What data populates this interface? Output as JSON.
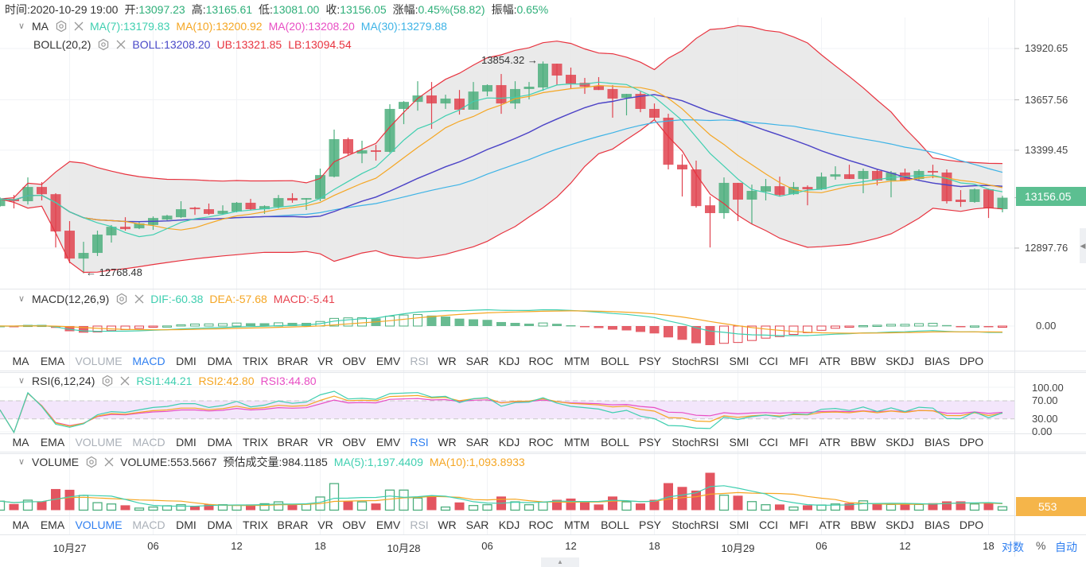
{
  "header": {
    "time_label": "时间:",
    "time": "2020-10-29 19:00",
    "open_label": "开:",
    "open": "13097.23",
    "high_label": "高:",
    "high": "13165.61",
    "low_label": "低:",
    "low": "13081.00",
    "close_label": "收:",
    "close": "13156.05",
    "change_label": "涨幅:",
    "change": "0.45%(58.82)",
    "amplitude_label": "振幅:",
    "amplitude": "0.65%"
  },
  "legends": {
    "ma": {
      "name": "MA",
      "items": [
        {
          "label": "MA(7):13179.83",
          "color": "#3fcfb0"
        },
        {
          "label": "MA(10):13200.92",
          "color": "#f5a623"
        },
        {
          "label": "MA(20):13208.20",
          "color": "#e84ec4"
        },
        {
          "label": "MA(30):13279.88",
          "color": "#3db3e6"
        }
      ]
    },
    "boll": {
      "name": "BOLL(20,2)",
      "items": [
        {
          "label": "BOLL:13208.20",
          "color": "#4848c8"
        },
        {
          "label": "UB:13321.85",
          "color": "#e8333f"
        },
        {
          "label": "LB:13094.54",
          "color": "#e8333f"
        }
      ]
    },
    "macd": {
      "name": "MACD(12,26,9)",
      "items": [
        {
          "label": "DIF:-60.38",
          "color": "#3fcfb0"
        },
        {
          "label": "DEA:-57.68",
          "color": "#f5a623"
        },
        {
          "label": "MACD:-5.41",
          "color": "#e8434f"
        }
      ]
    },
    "rsi": {
      "name": "RSI(6,12,24)",
      "items": [
        {
          "label": "RSI1:44.21",
          "color": "#3fcfb0"
        },
        {
          "label": "RSI2:42.80",
          "color": "#f5a623"
        },
        {
          "label": "RSI3:44.80",
          "color": "#e84ec4"
        }
      ]
    },
    "volume": {
      "name": "VOLUME",
      "items": [
        {
          "label": "VOLUME:553.5667",
          "color": "#333333"
        },
        {
          "label": "预估成交量:984.1185",
          "color": "#333333"
        },
        {
          "label": "MA(5):1,197.4409",
          "color": "#3fcfb0"
        },
        {
          "label": "MA(10):1,093.8933",
          "color": "#f5a623"
        }
      ]
    }
  },
  "indicator_tabs": [
    "MA",
    "EMA",
    "VOLUME",
    "MACD",
    "DMI",
    "DMA",
    "TRIX",
    "BRAR",
    "VR",
    "OBV",
    "EMV",
    "RSI",
    "WR",
    "SAR",
    "KDJ",
    "ROC",
    "MTM",
    "BOLL",
    "PSY",
    "StochRSI",
    "SMI",
    "CCI",
    "MFI",
    "ATR",
    "BBW",
    "SKDJ",
    "BIAS",
    "DPO"
  ],
  "tab_rows": [
    {
      "active": "MACD",
      "disabled": [
        "VOLUME",
        "RSI"
      ]
    },
    {
      "active": "RSI",
      "disabled": [
        "VOLUME",
        "MACD"
      ]
    },
    {
      "active": "VOLUME",
      "disabled": [
        "MACD",
        "RSI"
      ]
    }
  ],
  "price_axis": [
    "13920.65",
    "13657.56",
    "13399.45",
    "12897.76"
  ],
  "last_price": "13156.05",
  "macd_axis": "0.00",
  "rsi_axis": [
    "100.00",
    "70.00",
    "30.00",
    "0.00"
  ],
  "volume_badge": "553",
  "time_axis": [
    {
      "label": "10月27",
      "index": 5
    },
    {
      "label": "06",
      "index": 11
    },
    {
      "label": "12",
      "index": 17
    },
    {
      "label": "18",
      "index": 23
    },
    {
      "label": "10月28",
      "index": 29
    },
    {
      "label": "06",
      "index": 35
    },
    {
      "label": "12",
      "index": 41
    },
    {
      "label": "18",
      "index": 47
    },
    {
      "label": "10月29",
      "index": 53
    },
    {
      "label": "06",
      "index": 59
    },
    {
      "label": "12",
      "index": 65
    },
    {
      "label": "18",
      "index": 71
    }
  ],
  "bottom_controls": {
    "log": "对数",
    "percent": "%",
    "auto": "自动"
  },
  "annotations": {
    "high": "13854.32 →",
    "low": "← 12768.48"
  },
  "colors": {
    "up": "#4daf7e",
    "down": "#e0434f",
    "band": "#e8e8e8",
    "price_badge": "#5cbf91",
    "volume_badge": "#f5b54a",
    "active_tab": "#2f7ff0"
  },
  "chart_data": {
    "type": "candlestick",
    "title": "",
    "price_ticks": [
      13920.65,
      13657.56,
      13399.45,
      12897.76
    ],
    "y_range": [
      12720,
      13990
    ],
    "candles_ohlc": [
      [
        13113,
        13158,
        13109,
        13150
      ],
      [
        13150,
        13170,
        13101,
        13138
      ],
      [
        13138,
        13260,
        13121,
        13211
      ],
      [
        13211,
        13236,
        13142,
        13174
      ],
      [
        13174,
        13179,
        12901,
        12983
      ],
      [
        12987,
        13036,
        12820,
        12844
      ],
      [
        12844,
        12930,
        12768.48,
        12873
      ],
      [
        12873,
        12987,
        12857,
        12967
      ],
      [
        12963,
        13016,
        12926,
        13007
      ],
      [
        13007,
        13056,
        12987,
        12995
      ],
      [
        12999,
        13036,
        12995,
        13024
      ],
      [
        13016,
        13060,
        12991,
        13052
      ],
      [
        13044,
        13068,
        13036,
        13064
      ],
      [
        13056,
        13138,
        13052,
        13097
      ],
      [
        13105,
        13109,
        13068,
        13097
      ],
      [
        13097,
        13126,
        13068,
        13073
      ],
      [
        13073,
        13117,
        13068,
        13089
      ],
      [
        13085,
        13134,
        13081,
        13130
      ],
      [
        13130,
        13150,
        13093,
        13097
      ],
      [
        13097,
        13117,
        13073,
        13113
      ],
      [
        13109,
        13170,
        13101,
        13154
      ],
      [
        13154,
        13179,
        13130,
        13142
      ],
      [
        13146,
        13154,
        13093,
        13154
      ],
      [
        13150,
        13305,
        13138,
        13272
      ],
      [
        13264,
        13505,
        13260,
        13456
      ],
      [
        13456,
        13464,
        13374,
        13382
      ],
      [
        13382,
        13448,
        13333,
        13399
      ],
      [
        13399,
        13427,
        13346,
        13391
      ],
      [
        13391,
        13635,
        13386,
        13611
      ],
      [
        13611,
        13651,
        13533,
        13647
      ],
      [
        13647,
        13753,
        13602,
        13680
      ],
      [
        13680,
        13749,
        13509,
        13639
      ],
      [
        13639,
        13684,
        13611,
        13664
      ],
      [
        13664,
        13708,
        13582,
        13607
      ],
      [
        13607,
        13749,
        13607,
        13700
      ],
      [
        13700,
        13737,
        13676,
        13733
      ],
      [
        13733,
        13790,
        13586,
        13639
      ],
      [
        13639,
        13753,
        13611,
        13713
      ],
      [
        13713,
        13749,
        13660,
        13725
      ],
      [
        13721,
        13854.32,
        13704,
        13843
      ],
      [
        13843,
        13843,
        13733,
        13782
      ],
      [
        13786,
        13823,
        13713,
        13741
      ],
      [
        13745,
        13770,
        13688,
        13725
      ],
      [
        13729,
        13774,
        13708,
        13708
      ],
      [
        13713,
        13733,
        13566,
        13664
      ],
      [
        13668,
        13688,
        13578,
        13688
      ],
      [
        13688,
        13700,
        13594,
        13611
      ],
      [
        13611,
        13639,
        13558,
        13566
      ],
      [
        13566,
        13586,
        13301,
        13325
      ],
      [
        13325,
        13378,
        13162,
        13301
      ],
      [
        13301,
        13346,
        13105,
        13113
      ],
      [
        13117,
        13162,
        12901,
        13077
      ],
      [
        13077,
        13260,
        13048,
        13232
      ],
      [
        13232,
        13232,
        13036,
        13146
      ],
      [
        13146,
        13223,
        13020,
        13191
      ],
      [
        13187,
        13252,
        13142,
        13215
      ],
      [
        13215,
        13264,
        13162,
        13170
      ],
      [
        13174,
        13236,
        13170,
        13211
      ],
      [
        13211,
        13219,
        13117,
        13199
      ],
      [
        13199,
        13285,
        13195,
        13264
      ],
      [
        13264,
        13317,
        13248,
        13276
      ],
      [
        13276,
        13325,
        13252,
        13252
      ],
      [
        13252,
        13305,
        13179,
        13293
      ],
      [
        13293,
        13301,
        13219,
        13244
      ],
      [
        13244,
        13293,
        13158,
        13285
      ],
      [
        13285,
        13305,
        13244,
        13244
      ],
      [
        13252,
        13301,
        13244,
        13293
      ],
      [
        13293,
        13325,
        13256,
        13285
      ],
      [
        13285,
        13301,
        13126,
        13138
      ],
      [
        13146,
        13195,
        13109,
        13134
      ],
      [
        13134,
        13203,
        13130,
        13199
      ],
      [
        13199,
        13203,
        13052,
        13101
      ],
      [
        13097.23,
        13165.61,
        13081,
        13156.05
      ]
    ],
    "volume": [
      1440,
      990,
      1600,
      1410,
      3390,
      3270,
      2360,
      1200,
      990,
      780,
      330,
      500,
      700,
      870,
      700,
      910,
      870,
      780,
      910,
      1030,
      1330,
      820,
      990,
      2110,
      4260,
      1450,
      1330,
      1070,
      3220,
      3220,
      1940,
      2320,
      500,
      1240,
      740,
      870,
      2190,
      1330,
      870,
      1280,
      1660,
      1860,
      1280,
      910,
      2190,
      1330,
      1070,
      1660,
      4340,
      3730,
      3140,
      6000,
      2400,
      2320,
      1370,
      870,
      910,
      500,
      780,
      820,
      990,
      1120,
      1490,
      950,
      910,
      950,
      910,
      1120,
      1410,
      1410,
      990,
      1120,
      553.5667
    ],
    "overlays": [
      "MA(7)",
      "MA(10)",
      "MA(20)",
      "MA(30)",
      "BOLL(20,2)"
    ],
    "sub_charts": [
      "MACD(12,26,9)",
      "RSI(6,12,24)",
      "VOLUME"
    ],
    "high_marker": 13854.32,
    "low_marker": 12768.48
  }
}
